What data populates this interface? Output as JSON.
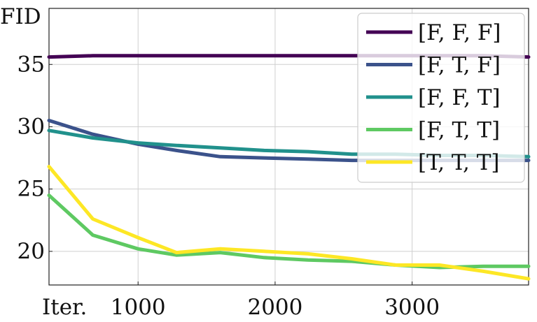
{
  "chart_data": {
    "type": "line",
    "ylabel": "FID",
    "xlabel": "Iter.",
    "xlim": [
      350,
      3850
    ],
    "ylim": [
      17.3,
      39.5
    ],
    "xticks": [
      1000,
      2000,
      3000
    ],
    "yticks": [
      20,
      25,
      30,
      35
    ],
    "grid": true,
    "legend_position": "top-right",
    "x": [
      350,
      670,
      1000,
      1280,
      1600,
      1920,
      2240,
      2560,
      2880,
      3200,
      3520,
      3850
    ],
    "series": [
      {
        "name": "[F, F, F]",
        "color": "#440154",
        "values": [
          35.6,
          35.7,
          35.7,
          35.7,
          35.7,
          35.7,
          35.7,
          35.7,
          35.7,
          35.7,
          35.7,
          35.6
        ]
      },
      {
        "name": "[F, T, F]",
        "color": "#3b528b",
        "values": [
          30.5,
          29.4,
          28.6,
          28.1,
          27.6,
          27.5,
          27.4,
          27.3,
          27.3,
          27.3,
          27.3,
          27.3
        ]
      },
      {
        "name": "[F, F, T]",
        "color": "#21918c",
        "values": [
          29.7,
          29.1,
          28.7,
          28.5,
          28.3,
          28.1,
          28.0,
          27.8,
          27.8,
          27.7,
          27.7,
          27.6
        ]
      },
      {
        "name": "[F, T, T]",
        "color": "#5ec962",
        "values": [
          24.5,
          21.3,
          20.2,
          19.7,
          19.9,
          19.5,
          19.3,
          19.2,
          18.9,
          18.7,
          18.8,
          18.8
        ]
      },
      {
        "name": "[T, T, T]",
        "color": "#fde725",
        "values": [
          26.8,
          22.6,
          21.1,
          19.9,
          20.2,
          20.0,
          19.8,
          19.4,
          18.9,
          18.9,
          18.4,
          17.8
        ]
      }
    ]
  }
}
